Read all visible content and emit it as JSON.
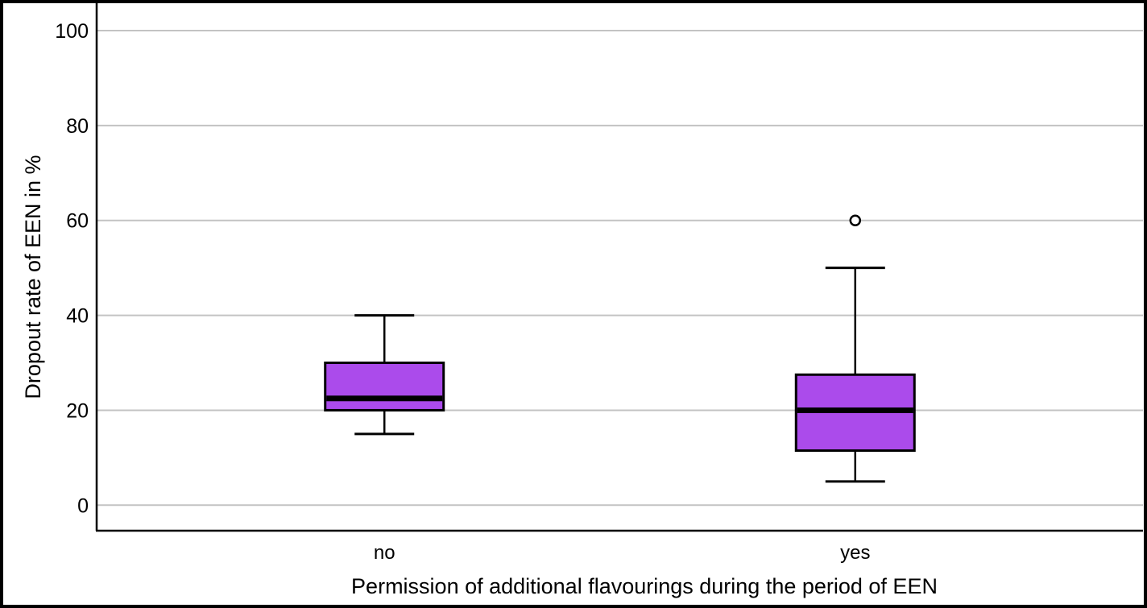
{
  "chart_data": {
    "type": "boxplot",
    "title": "",
    "xlabel": "Permission of additional flavourings during the period of EEN",
    "ylabel": "Dropout rate of EEN in %",
    "categories": [
      "no",
      "yes"
    ],
    "yticks": [
      0,
      20,
      40,
      60,
      80,
      100
    ],
    "ylim": [
      0,
      100
    ],
    "grid": "horizontal",
    "legend": "none",
    "series": [
      {
        "category": "no",
        "min": 15,
        "q1": 20,
        "median": 22.5,
        "q3": 30,
        "max": 40,
        "outliers": []
      },
      {
        "category": "yes",
        "min": 5,
        "q1": 11.5,
        "median": 20,
        "q3": 27.5,
        "max": 50,
        "outliers": [
          60
        ]
      }
    ],
    "colors": {
      "box_fill": "#ab4beb",
      "box_border": "#000000",
      "median": "#000000",
      "whisker": "#000000",
      "gridline": "#c3c3c3",
      "axis": "#000000",
      "outlier_stroke": "#000000",
      "outlier_fill": "#ffffff",
      "background": "#ffffff",
      "border": "#000000"
    }
  }
}
